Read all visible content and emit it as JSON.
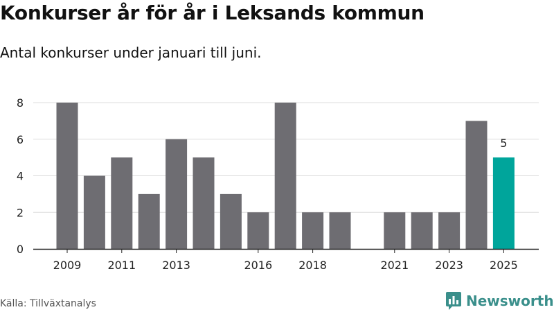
{
  "title": "Konkurser år för år i Leksands kommun",
  "subtitle": "Antal konkurser under januari till juni.",
  "source": "Källa: Tillväxtanalys",
  "brand": "Newsworthy",
  "colors": {
    "bar": "#6e6d72",
    "highlight": "#00a59b",
    "grid": "#dddddd",
    "axis": "#222222",
    "brand": "#3a8f8b"
  },
  "chart_data": {
    "type": "bar",
    "categories": [
      "2009",
      "2010",
      "2011",
      "2012",
      "2013",
      "2014",
      "2015",
      "2016",
      "2017",
      "2018",
      "2019",
      "2020",
      "2021",
      "2022",
      "2023",
      "2024",
      "2025"
    ],
    "values": [
      8,
      4,
      5,
      3,
      6,
      5,
      3,
      2,
      8,
      2,
      2,
      0,
      2,
      2,
      2,
      7,
      5
    ],
    "x_tick_labels": [
      "2009",
      "2011",
      "2013",
      "2016",
      "2018",
      "2021",
      "2023",
      "2025"
    ],
    "y_ticks": [
      0,
      2,
      4,
      6,
      8
    ],
    "ylim": [
      0,
      8
    ],
    "highlight_category": "2025",
    "data_labels": [
      {
        "category": "2025",
        "text": "5"
      }
    ],
    "grid": true,
    "title": "Konkurser år för år i Leksands kommun",
    "xlabel": "",
    "ylabel": ""
  }
}
